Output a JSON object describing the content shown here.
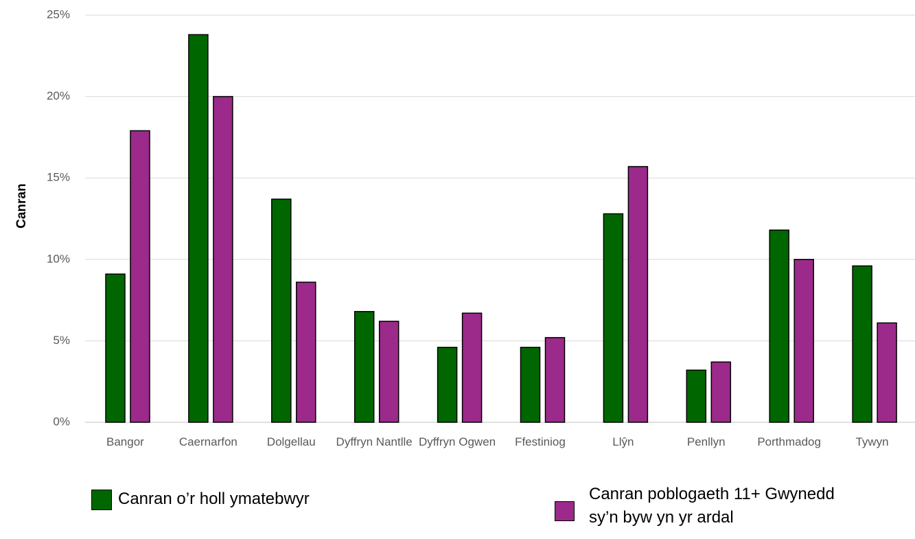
{
  "chart_data": {
    "type": "bar",
    "y_label": "Canran",
    "categories": [
      "Bangor",
      "Caernarfon",
      "Dolgellau",
      "Dyffryn Nantlle",
      "Dyffryn Ogwen",
      "Ffestiniog",
      "Llŷn",
      "Penllyn",
      "Porthmadog",
      "Tywyn"
    ],
    "series": [
      {
        "name": "Canran o’r holl ymatebwyr",
        "color": "#006600",
        "values": [
          9.1,
          23.8,
          13.7,
          6.8,
          4.6,
          4.6,
          12.8,
          3.2,
          11.8,
          9.6
        ]
      },
      {
        "name": "Canran poblogaeth 11+ Gwynedd sy’n byw yn yr ardal",
        "color": "#9b2a8a",
        "values": [
          17.9,
          20.0,
          8.6,
          6.2,
          6.7,
          5.2,
          15.7,
          3.7,
          10.0,
          6.1
        ]
      }
    ],
    "ylim": [
      0,
      25
    ],
    "yticks": [
      {
        "value": 0,
        "label": "0%"
      },
      {
        "value": 5,
        "label": "5%"
      },
      {
        "value": 10,
        "label": "10%"
      },
      {
        "value": 15,
        "label": "15%"
      },
      {
        "value": 20,
        "label": "20%"
      },
      {
        "value": 25,
        "label": "25%"
      }
    ],
    "grid": true
  }
}
